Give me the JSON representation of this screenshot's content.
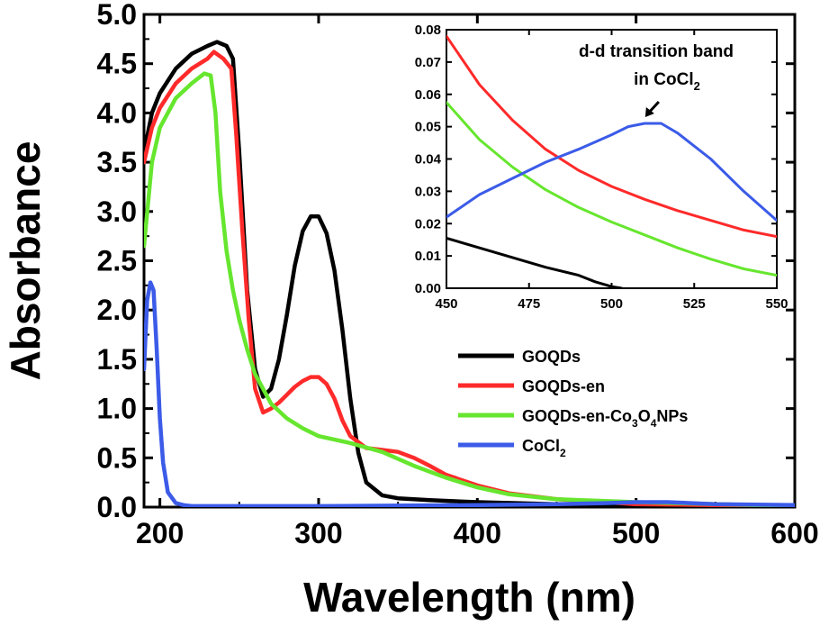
{
  "chart_data": [
    {
      "type": "line",
      "xlabel": "Wavelength (nm)",
      "ylabel": "Absorbance",
      "xlim": [
        190,
        600
      ],
      "ylim": [
        0,
        5.0
      ],
      "xticks": [
        200,
        300,
        400,
        500,
        600
      ],
      "yticks": [
        0.0,
        0.5,
        1.0,
        1.5,
        2.0,
        2.5,
        3.0,
        3.5,
        4.0,
        4.5,
        5.0
      ],
      "ytick_labels": [
        "0.0",
        "0.5",
        "1.0",
        "1.5",
        "2.0",
        "2.5",
        "3.0",
        "3.5",
        "4.0",
        "4.5",
        "5.0"
      ],
      "grid": false,
      "legend_position": "center-right",
      "series": [
        {
          "name": "GOQDs",
          "color": "#000000",
          "x": [
            190,
            195,
            200,
            210,
            220,
            230,
            236,
            242,
            246,
            250,
            255,
            260,
            265,
            270,
            275,
            280,
            285,
            290,
            295,
            300,
            305,
            310,
            315,
            320,
            325,
            330,
            340,
            350,
            370,
            400,
            450,
            500,
            600
          ],
          "y": [
            3.6,
            4.0,
            4.2,
            4.45,
            4.6,
            4.68,
            4.72,
            4.68,
            4.55,
            3.6,
            2.2,
            1.4,
            1.12,
            1.2,
            1.5,
            1.95,
            2.45,
            2.8,
            2.95,
            2.95,
            2.78,
            2.4,
            1.8,
            1.1,
            0.55,
            0.25,
            0.12,
            0.09,
            0.07,
            0.05,
            0.03,
            0.02,
            0.01
          ]
        },
        {
          "name": "GOQDs-en",
          "color": "#ff2a2a",
          "x": [
            190,
            195,
            200,
            210,
            220,
            230,
            234,
            240,
            245,
            248,
            252,
            256,
            260,
            265,
            270,
            275,
            280,
            285,
            290,
            295,
            300,
            305,
            310,
            315,
            320,
            330,
            340,
            350,
            360,
            370,
            380,
            400,
            420,
            450,
            500,
            550,
            600
          ],
          "y": [
            3.5,
            3.85,
            4.05,
            4.3,
            4.45,
            4.55,
            4.62,
            4.55,
            4.45,
            3.8,
            2.8,
            1.9,
            1.2,
            0.96,
            1.0,
            1.06,
            1.14,
            1.22,
            1.28,
            1.32,
            1.32,
            1.25,
            1.1,
            0.88,
            0.72,
            0.6,
            0.58,
            0.56,
            0.5,
            0.42,
            0.33,
            0.22,
            0.14,
            0.08,
            0.03,
            0.02,
            0.01
          ]
        },
        {
          "name": "GOQDs-en-Co₃O₄NPs",
          "color": "#66e62e",
          "x": [
            190,
            195,
            200,
            210,
            220,
            228,
            232,
            235,
            238,
            242,
            246,
            250,
            255,
            260,
            265,
            270,
            280,
            290,
            300,
            320,
            340,
            360,
            380,
            400,
            420,
            450,
            500,
            550,
            600
          ],
          "y": [
            2.65,
            3.5,
            3.85,
            4.15,
            4.3,
            4.4,
            4.38,
            4.0,
            3.2,
            2.6,
            2.2,
            1.9,
            1.6,
            1.35,
            1.2,
            1.05,
            0.9,
            0.8,
            0.72,
            0.65,
            0.56,
            0.42,
            0.3,
            0.2,
            0.13,
            0.08,
            0.05,
            0.03,
            0.01
          ]
        },
        {
          "name": "CoCl₂",
          "color": "#3b5be8",
          "x": [
            190,
            192,
            194,
            196,
            198,
            200,
            202,
            205,
            210,
            215,
            220,
            250,
            300,
            400,
            450,
            480,
            500,
            510,
            520,
            550,
            600
          ],
          "y": [
            1.4,
            2.1,
            2.28,
            2.2,
            1.6,
            0.9,
            0.45,
            0.15,
            0.04,
            0.02,
            0.01,
            0.01,
            0.01,
            0.02,
            0.03,
            0.04,
            0.05,
            0.05,
            0.05,
            0.03,
            0.02
          ]
        }
      ]
    },
    {
      "type": "line",
      "xlabel": "",
      "ylabel": "",
      "xlim": [
        450,
        550
      ],
      "ylim": [
        0.0,
        0.08
      ],
      "xticks": [
        450,
        475,
        500,
        525,
        550
      ],
      "yticks": [
        0.0,
        0.01,
        0.02,
        0.03,
        0.04,
        0.05,
        0.06,
        0.07,
        0.08
      ],
      "ytick_labels": [
        "0.00",
        "0.01",
        "0.02",
        "0.03",
        "0.04",
        "0.05",
        "0.06",
        "0.07",
        "0.08"
      ],
      "grid": false,
      "annotation": {
        "line1": "d-d transition band",
        "line2_prefix": "in CoCl",
        "line2_sub": "2",
        "arrow_to": [
          508,
          0.051
        ]
      },
      "series": [
        {
          "name": "GOQDs",
          "color": "#000000",
          "x": [
            450,
            460,
            470,
            480,
            490,
            495,
            500,
            503
          ],
          "y": [
            0.0155,
            0.0125,
            0.0095,
            0.0065,
            0.004,
            0.002,
            0.0005,
            0.0
          ]
        },
        {
          "name": "GOQDs-en",
          "color": "#ff2a2a",
          "x": [
            450,
            460,
            470,
            480,
            490,
            500,
            510,
            520,
            530,
            540,
            550
          ],
          "y": [
            0.078,
            0.063,
            0.052,
            0.043,
            0.0365,
            0.0315,
            0.0275,
            0.024,
            0.021,
            0.018,
            0.016
          ]
        },
        {
          "name": "GOQDs-en-Co₃O₄NPs",
          "color": "#66e62e",
          "x": [
            450,
            460,
            470,
            480,
            490,
            500,
            510,
            520,
            530,
            540,
            550
          ],
          "y": [
            0.0575,
            0.046,
            0.0375,
            0.0305,
            0.025,
            0.0205,
            0.0165,
            0.0125,
            0.009,
            0.006,
            0.004
          ]
        },
        {
          "name": "CoCl₂",
          "color": "#3b5be8",
          "x": [
            450,
            460,
            470,
            480,
            490,
            500,
            505,
            510,
            515,
            520,
            530,
            540,
            550
          ],
          "y": [
            0.022,
            0.029,
            0.034,
            0.039,
            0.043,
            0.0475,
            0.05,
            0.051,
            0.051,
            0.048,
            0.04,
            0.03,
            0.021
          ]
        }
      ]
    }
  ],
  "legend": [
    {
      "series": 0,
      "parts": [
        {
          "text": "GOQDs"
        }
      ]
    },
    {
      "series": 1,
      "parts": [
        {
          "text": "GOQDs-en"
        }
      ]
    },
    {
      "series": 2,
      "parts": [
        {
          "text": "GOQDs-en-Co"
        },
        {
          "text": "3",
          "sub": true
        },
        {
          "text": "O"
        },
        {
          "text": "4",
          "sub": true
        },
        {
          "text": "NPs"
        }
      ]
    },
    {
      "series": 3,
      "parts": [
        {
          "text": "CoCl"
        },
        {
          "text": "2",
          "sub": true
        }
      ]
    }
  ]
}
